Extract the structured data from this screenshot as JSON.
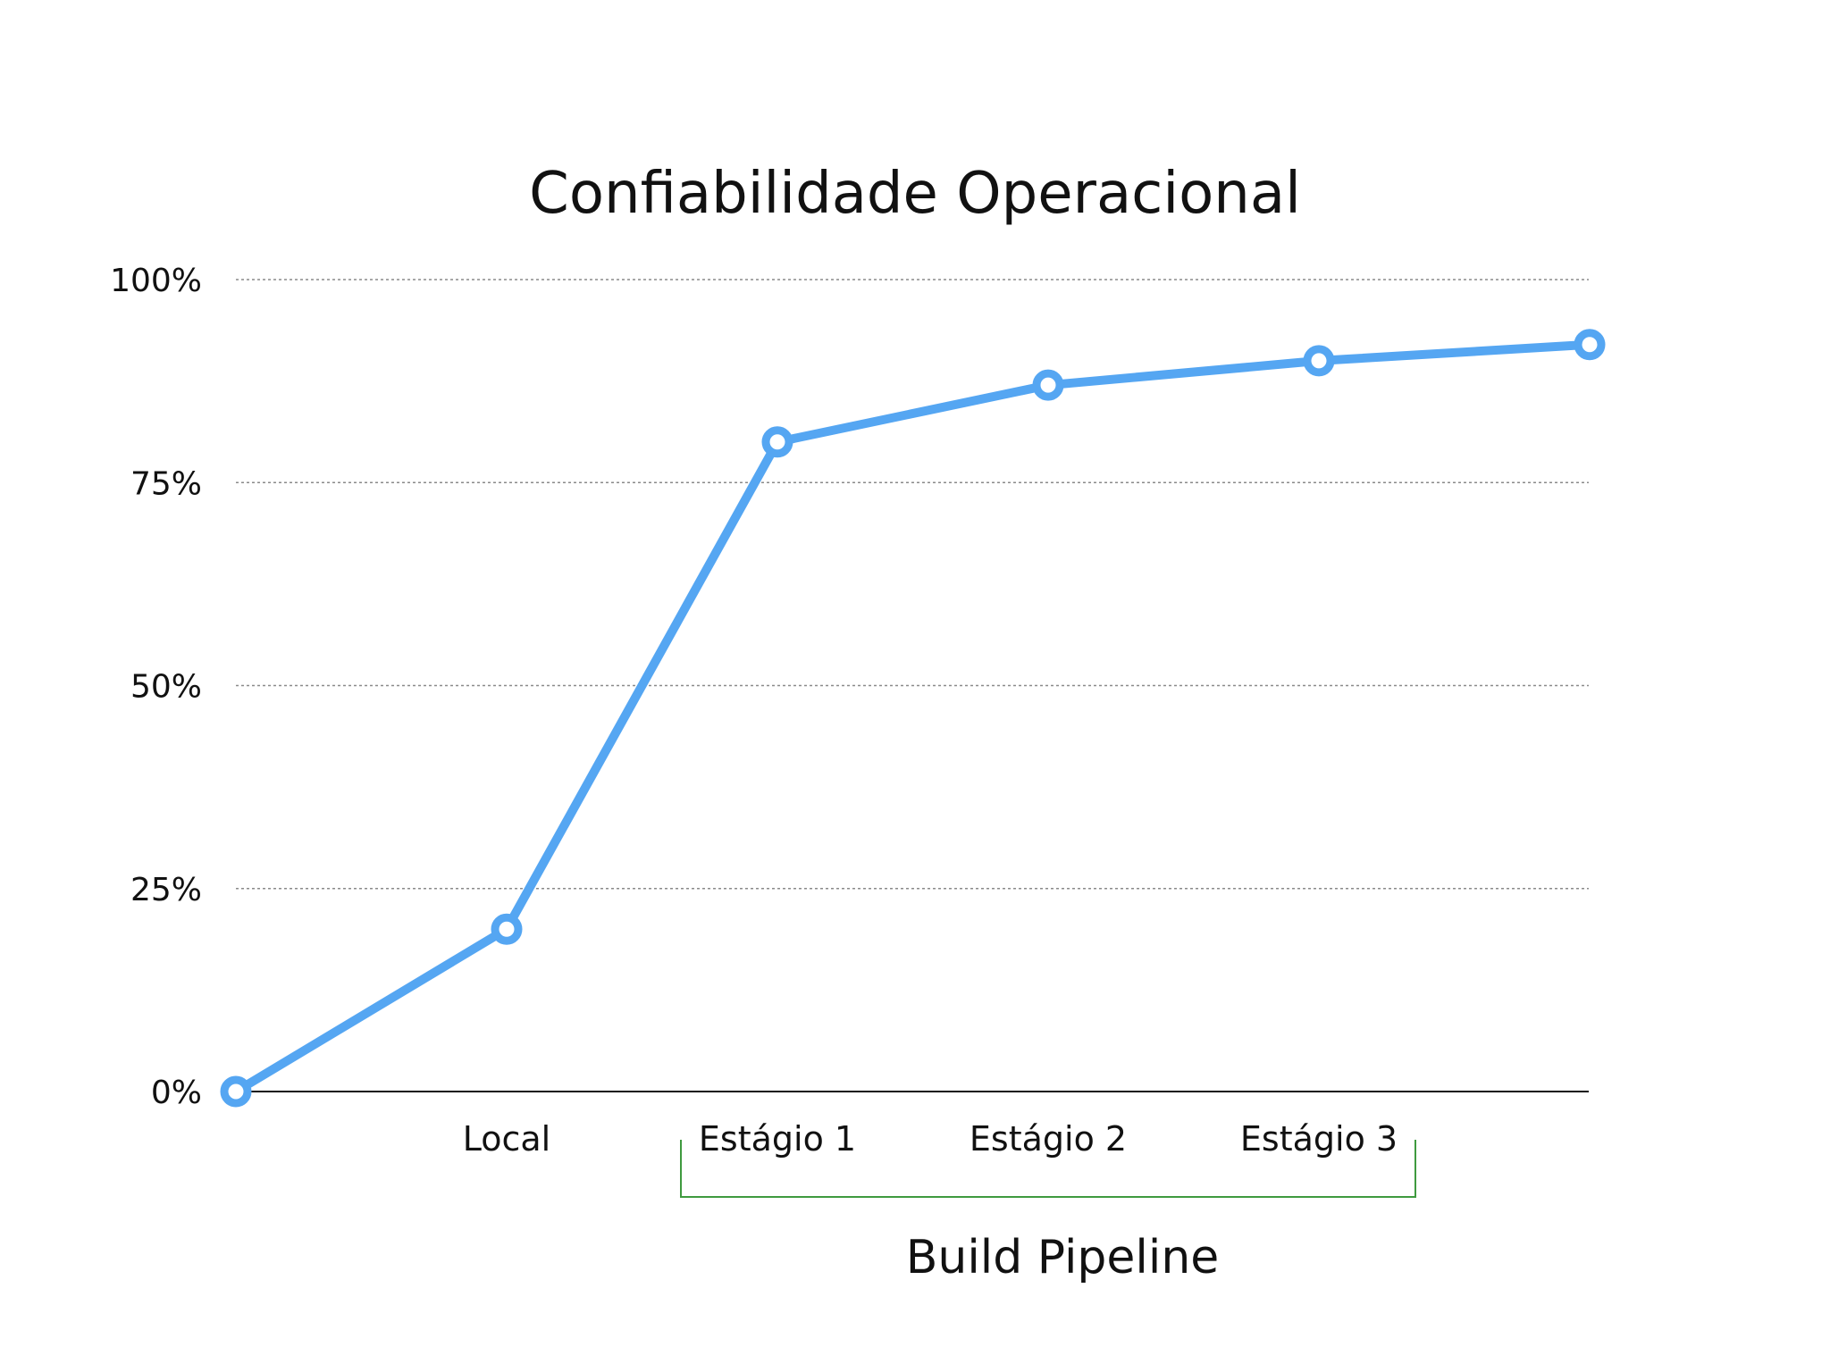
{
  "colors": {
    "series": "#55a6f2",
    "bracket": "#3f9a3f",
    "grid": "#8a8a8a",
    "axis": "#111111"
  },
  "chart_data": {
    "type": "line",
    "title": "Confiabilidade Operacional",
    "xlabel": "",
    "ylabel": "",
    "ylim": [
      0,
      100
    ],
    "yticks": [
      0,
      25,
      50,
      75,
      100
    ],
    "ytick_labels": [
      "0%",
      "25%",
      "50%",
      "75%",
      "100%"
    ],
    "grid": "horizontal dotted",
    "categories": [
      "",
      "Local",
      "Estágio 1",
      "Estágio 2",
      "Estágio 3",
      ""
    ],
    "series": [
      {
        "values": [
          0,
          20,
          80,
          87,
          90,
          92
        ]
      }
    ],
    "annotations": [
      {
        "type": "bracket",
        "label": "Build Pipeline",
        "spans": [
          "Estágio 1",
          "Estágio 2",
          "Estágio 3"
        ]
      }
    ]
  }
}
